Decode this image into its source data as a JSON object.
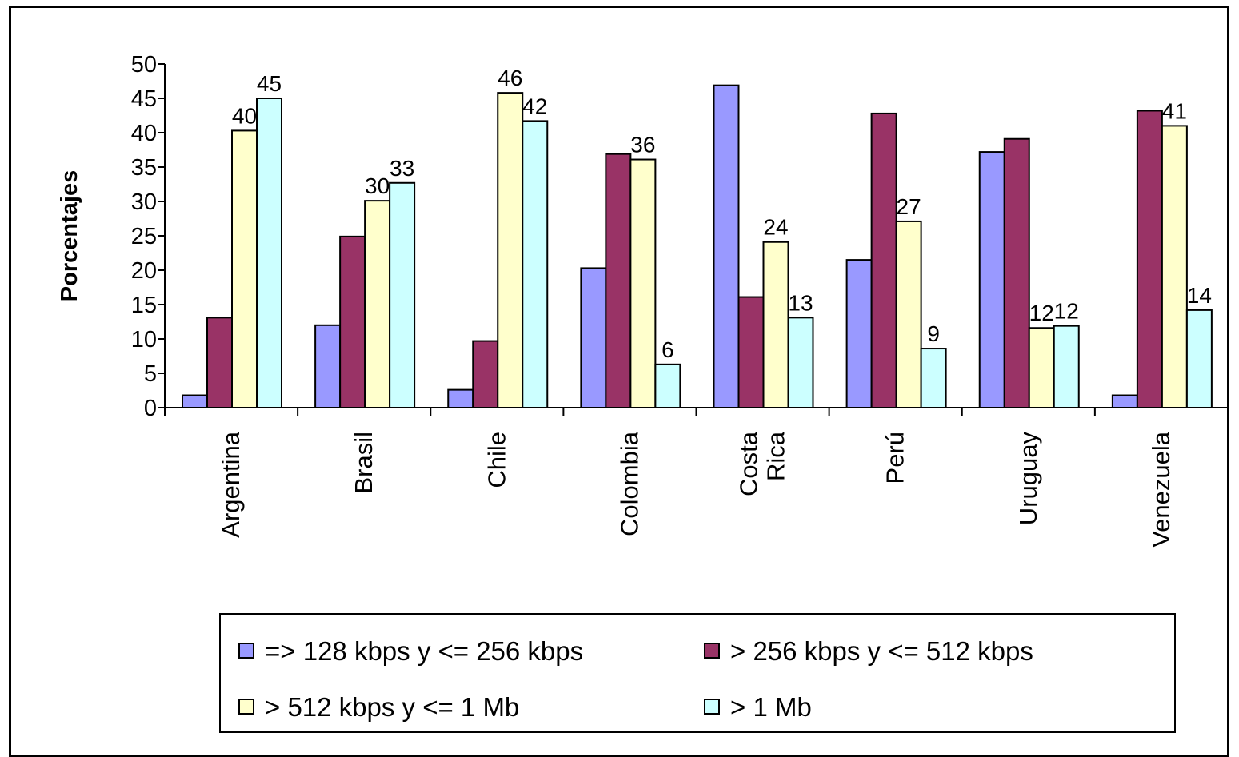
{
  "chart_data": {
    "type": "bar",
    "ylabel": "Porcentajes",
    "xlabel": "",
    "ylim": [
      0,
      50
    ],
    "yticks": [
      0,
      5,
      10,
      15,
      20,
      25,
      30,
      35,
      40,
      45,
      50
    ],
    "categories": [
      [
        "Argentina"
      ],
      [
        "Brasil"
      ],
      [
        "Chile"
      ],
      [
        "Colombia"
      ],
      [
        "Costa",
        "Rica"
      ],
      [
        "Perú"
      ],
      [
        "Uruguay"
      ],
      [
        "Venezuela"
      ]
    ],
    "series": [
      {
        "name": "=> 128 kbps y <= 256 kbps",
        "color": "#9999ff",
        "values": [
          1.8,
          12,
          2.6,
          20.3,
          46.9,
          21.5,
          37.2,
          1.8
        ],
        "labels": [
          "",
          "",
          "",
          "",
          "",
          "",
          "",
          ""
        ]
      },
      {
        "name": "> 256 kbps y <= 512 kbps",
        "color": "#993366",
        "values": [
          13.1,
          24.9,
          9.7,
          36.9,
          16.1,
          42.8,
          39.1,
          43.2
        ],
        "labels": [
          "",
          "",
          "",
          "",
          "",
          "",
          "",
          ""
        ]
      },
      {
        "name": "> 512 kbps y <= 1 Mb",
        "color": "#ffffcc",
        "values": [
          40.3,
          30.1,
          45.8,
          36.1,
          24.1,
          27.1,
          11.6,
          41
        ],
        "labels": [
          "40",
          "30",
          "46",
          "36",
          "24",
          "27",
          "12",
          "41"
        ]
      },
      {
        "name": "> 1 Mb",
        "color": "#ccffff",
        "values": [
          45,
          32.7,
          41.7,
          6.3,
          13.1,
          8.6,
          11.9,
          14.2
        ],
        "labels": [
          "45",
          "33",
          "42",
          "6",
          "13",
          "9",
          "12",
          "14"
        ]
      }
    ],
    "legend_position": "bottom",
    "grid": false
  }
}
